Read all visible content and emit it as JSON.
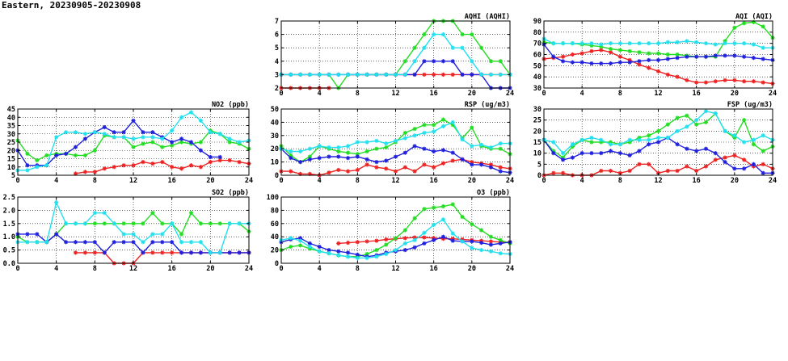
{
  "page": {
    "title": "Eastern, 20230905-20230908"
  },
  "colors": {
    "red": "#ee2222",
    "green": "#22dd22",
    "blue": "#1f1fdd",
    "cyan": "#22e0ee"
  },
  "chart_data": [
    {
      "id": "aqhi",
      "type": "line",
      "title": "AQHI (AQHI)",
      "xlim": [
        0,
        24
      ],
      "ylim": [
        2,
        7
      ],
      "xticks": [
        0,
        4,
        8,
        12,
        16,
        20,
        24
      ],
      "yticks": [
        2,
        3,
        4,
        5,
        6,
        7
      ],
      "grid": true,
      "series": [
        {
          "color": "#ee2222",
          "values": [
            2,
            2,
            2,
            2,
            2,
            2,
            null,
            3,
            3,
            3,
            3,
            3,
            3,
            3,
            3,
            3,
            3,
            3,
            3,
            3,
            3,
            3,
            3,
            3,
            3
          ]
        },
        {
          "color": "#22dd22",
          "values": [
            3,
            3,
            3,
            3,
            3,
            3,
            2,
            3,
            3,
            3,
            3,
            3,
            3,
            4,
            5,
            6,
            7,
            7,
            7,
            6,
            6,
            5,
            4,
            4,
            3
          ]
        },
        {
          "color": "#1f1fdd",
          "values": [
            3,
            3,
            3,
            3,
            3,
            3,
            3,
            3,
            3,
            3,
            3,
            3,
            3,
            3,
            3,
            4,
            4,
            4,
            4,
            3,
            3,
            3,
            2,
            2,
            2
          ]
        },
        {
          "color": "#22e0ee",
          "values": [
            3,
            3,
            3,
            3,
            3,
            3,
            3,
            3,
            3,
            3,
            3,
            3,
            3,
            3,
            4,
            5,
            6,
            6,
            5,
            5,
            4,
            3,
            3,
            3,
            3
          ]
        }
      ]
    },
    {
      "id": "aqi",
      "type": "line",
      "title": "AQI (AQI)",
      "xlim": [
        0,
        24
      ],
      "ylim": [
        30,
        90
      ],
      "xticks": [
        0,
        4,
        8,
        12,
        16,
        20,
        24
      ],
      "yticks": [
        30,
        40,
        50,
        60,
        70,
        80,
        90
      ],
      "grid": true,
      "series": [
        {
          "color": "#ee2222",
          "values": [
            56,
            57,
            58,
            60,
            61,
            63,
            64,
            62,
            58,
            55,
            51,
            48,
            45,
            42,
            40,
            37,
            35,
            35,
            36,
            37,
            37,
            36,
            36,
            35,
            34
          ]
        },
        {
          "color": "#22dd22",
          "values": [
            71,
            70,
            70,
            70,
            69,
            68,
            67,
            65,
            64,
            63,
            62,
            61,
            61,
            60,
            60,
            59,
            58,
            58,
            58,
            72,
            84,
            88,
            89,
            85,
            75
          ]
        },
        {
          "color": "#1f1fdd",
          "values": [
            69,
            58,
            54,
            53,
            53,
            52,
            52,
            52,
            53,
            53,
            54,
            55,
            55,
            56,
            57,
            58,
            58,
            58,
            59,
            59,
            59,
            58,
            57,
            56,
            55
          ]
        },
        {
          "color": "#22e0ee",
          "values": [
            74,
            70,
            70,
            70,
            70,
            70,
            69,
            70,
            70,
            70,
            70,
            70,
            70,
            71,
            71,
            72,
            71,
            70,
            69,
            70,
            70,
            70,
            69,
            66,
            66
          ]
        }
      ]
    },
    {
      "id": "no2",
      "type": "line",
      "title": "NO2 (ppb)",
      "xlim": [
        0,
        24
      ],
      "ylim": [
        5,
        45
      ],
      "xticks": [
        0,
        4,
        8,
        12,
        16,
        20,
        24
      ],
      "yticks": [
        5,
        10,
        15,
        20,
        25,
        30,
        35,
        40,
        45
      ],
      "grid": true,
      "series": [
        {
          "color": "#ee2222",
          "values": [
            null,
            null,
            null,
            null,
            null,
            null,
            6,
            7,
            7,
            9,
            10,
            11,
            11,
            13,
            12,
            13,
            10,
            9,
            11,
            10,
            13,
            14,
            14,
            13,
            12
          ]
        },
        {
          "color": "#22dd22",
          "values": [
            26,
            18,
            14,
            17,
            18,
            18,
            17,
            17,
            20,
            29,
            28,
            28,
            22,
            24,
            25,
            22,
            23,
            25,
            24,
            25,
            32,
            30,
            25,
            24,
            21
          ]
        },
        {
          "color": "#1f1fdd",
          "values": [
            20,
            11,
            11,
            11,
            17,
            18,
            22,
            27,
            31,
            34,
            31,
            31,
            38,
            31,
            31,
            28,
            25,
            27,
            25,
            20,
            16,
            16,
            null,
            null,
            null
          ]
        },
        {
          "color": "#22e0ee",
          "values": [
            8,
            8,
            10,
            11,
            28,
            31,
            31,
            30,
            31,
            30,
            28,
            28,
            27,
            28,
            28,
            27,
            32,
            40,
            43,
            38,
            31,
            30,
            27,
            25,
            26
          ]
        }
      ]
    },
    {
      "id": "rsp",
      "type": "line",
      "title": "RSP (ug/m3)",
      "xlim": [
        0,
        24
      ],
      "ylim": [
        0,
        50
      ],
      "xticks": [
        0,
        4,
        8,
        12,
        16,
        20,
        24
      ],
      "yticks": [
        0,
        10,
        20,
        30,
        40,
        50
      ],
      "grid": true,
      "series": [
        {
          "color": "#ee2222",
          "values": [
            3,
            3,
            1,
            1,
            0,
            2,
            4,
            3,
            4,
            8,
            6,
            5,
            3,
            6,
            3,
            8,
            6,
            9,
            11,
            12,
            10,
            9,
            8,
            6,
            5
          ]
        },
        {
          "color": "#22dd22",
          "values": [
            22,
            15,
            10,
            14,
            22,
            20,
            18,
            17,
            16,
            18,
            20,
            21,
            25,
            32,
            35,
            38,
            38,
            42,
            38,
            28,
            36,
            22,
            20,
            20,
            16
          ]
        },
        {
          "color": "#1f1fdd",
          "values": [
            20,
            13,
            10,
            12,
            13,
            14,
            14,
            13,
            14,
            12,
            10,
            11,
            14,
            17,
            22,
            20,
            18,
            19,
            17,
            12,
            8,
            8,
            6,
            3,
            2
          ]
        },
        {
          "color": "#22e0ee",
          "values": [
            20,
            18,
            18,
            20,
            22,
            21,
            21,
            22,
            25,
            25,
            26,
            24,
            26,
            28,
            30,
            32,
            33,
            37,
            40,
            27,
            22,
            23,
            21,
            24,
            24
          ]
        }
      ]
    },
    {
      "id": "fsp",
      "type": "line",
      "title": "FSP (ug/m3)",
      "xlim": [
        0,
        24
      ],
      "ylim": [
        0,
        30
      ],
      "xticks": [
        0,
        4,
        8,
        12,
        16,
        20,
        24
      ],
      "yticks": [
        0,
        5,
        10,
        15,
        20,
        25,
        30
      ],
      "grid": true,
      "series": [
        {
          "color": "#ee2222",
          "values": [
            0,
            1,
            1,
            0,
            0,
            0,
            2,
            2,
            1,
            2,
            5,
            5,
            1,
            2,
            2,
            4,
            2,
            4,
            7,
            8,
            9,
            7,
            4,
            5,
            3
          ]
        },
        {
          "color": "#22dd22",
          "values": [
            16,
            11,
            8,
            13,
            16,
            15,
            15,
            15,
            14,
            15,
            17,
            18,
            20,
            23,
            26,
            27,
            23,
            24,
            28,
            20,
            17,
            25,
            14,
            11,
            13
          ]
        },
        {
          "color": "#1f1fdd",
          "values": [
            16,
            10,
            7,
            8,
            10,
            10,
            10,
            11,
            10,
            9,
            11,
            14,
            15,
            17,
            14,
            12,
            11,
            12,
            10,
            6,
            3,
            3,
            5,
            1,
            1
          ]
        },
        {
          "color": "#22e0ee",
          "values": [
            16,
            15,
            10,
            14,
            16,
            17,
            16,
            14,
            14,
            16,
            16,
            16,
            17,
            17,
            20,
            22,
            25,
            29,
            28,
            20,
            18,
            15,
            16,
            18,
            16
          ]
        }
      ]
    },
    {
      "id": "so2",
      "type": "line",
      "title": "SO2 (ppb)",
      "xlim": [
        0,
        24
      ],
      "ylim": [
        0,
        2.5
      ],
      "xticks": [
        0,
        4,
        8,
        12,
        16,
        20,
        24
      ],
      "yticks": [
        0.0,
        0.5,
        1.0,
        1.5,
        2.0,
        2.5
      ],
      "grid": true,
      "series": [
        {
          "color": "#ee2222",
          "values": [
            null,
            null,
            null,
            null,
            null,
            null,
            0.4,
            0.4,
            0.4,
            0.4,
            0,
            0,
            0,
            0.4,
            0.4,
            0.4,
            0.4,
            0.4,
            0.4,
            0.4,
            0.4,
            0.4,
            0.4,
            0.4,
            0.4
          ]
        },
        {
          "color": "#22dd22",
          "values": [
            1.0,
            0.8,
            0.8,
            0.8,
            1.1,
            1.5,
            1.5,
            1.5,
            1.5,
            1.5,
            1.5,
            1.5,
            1.5,
            1.5,
            1.9,
            1.5,
            1.5,
            1.1,
            1.9,
            1.5,
            1.5,
            1.5,
            1.5,
            1.5,
            1.2
          ]
        },
        {
          "color": "#1f1fdd",
          "values": [
            1.1,
            1.1,
            1.1,
            0.8,
            1.1,
            0.8,
            0.8,
            0.8,
            0.8,
            0.4,
            0.8,
            0.8,
            0.8,
            0.4,
            0.8,
            0.8,
            0.8,
            0.4,
            0.4,
            0.4,
            0.4,
            0.4,
            0.4,
            0.4,
            0.4
          ]
        },
        {
          "color": "#22e0ee",
          "values": [
            0.8,
            0.8,
            0.8,
            0.8,
            2.3,
            1.5,
            1.5,
            1.5,
            1.9,
            1.9,
            1.5,
            1.1,
            1.1,
            0.8,
            1.1,
            1.1,
            1.5,
            0.8,
            0.8,
            0.8,
            0.4,
            0.4,
            1.5,
            1.5,
            1.5
          ]
        }
      ]
    },
    {
      "id": "o3",
      "type": "line",
      "title": "O3 (ppb)",
      "xlim": [
        0,
        24
      ],
      "ylim": [
        0,
        100
      ],
      "xticks": [
        0,
        4,
        8,
        12,
        16,
        20,
        24
      ],
      "yticks": [
        0,
        20,
        40,
        60,
        80,
        100
      ],
      "grid": true,
      "series": [
        {
          "color": "#ee2222",
          "values": [
            null,
            null,
            null,
            null,
            null,
            null,
            30,
            31,
            32,
            33,
            34,
            36,
            37,
            38,
            39,
            39,
            38,
            37,
            37,
            36,
            35,
            34,
            33,
            32,
            32
          ]
        },
        {
          "color": "#22dd22",
          "values": [
            20,
            25,
            27,
            22,
            18,
            15,
            12,
            10,
            10,
            14,
            20,
            28,
            38,
            50,
            68,
            82,
            84,
            86,
            89,
            70,
            59,
            50,
            40,
            35,
            30
          ]
        },
        {
          "color": "#1f1fdd",
          "values": [
            32,
            36,
            38,
            30,
            25,
            20,
            18,
            16,
            13,
            10,
            12,
            16,
            18,
            20,
            24,
            30,
            35,
            40,
            34,
            33,
            33,
            31,
            28,
            30,
            32
          ]
        },
        {
          "color": "#22e0ee",
          "values": [
            35,
            38,
            34,
            25,
            18,
            15,
            12,
            10,
            8,
            8,
            10,
            14,
            20,
            30,
            35,
            46,
            58,
            66,
            45,
            33,
            23,
            20,
            18,
            15,
            14
          ]
        }
      ]
    }
  ]
}
